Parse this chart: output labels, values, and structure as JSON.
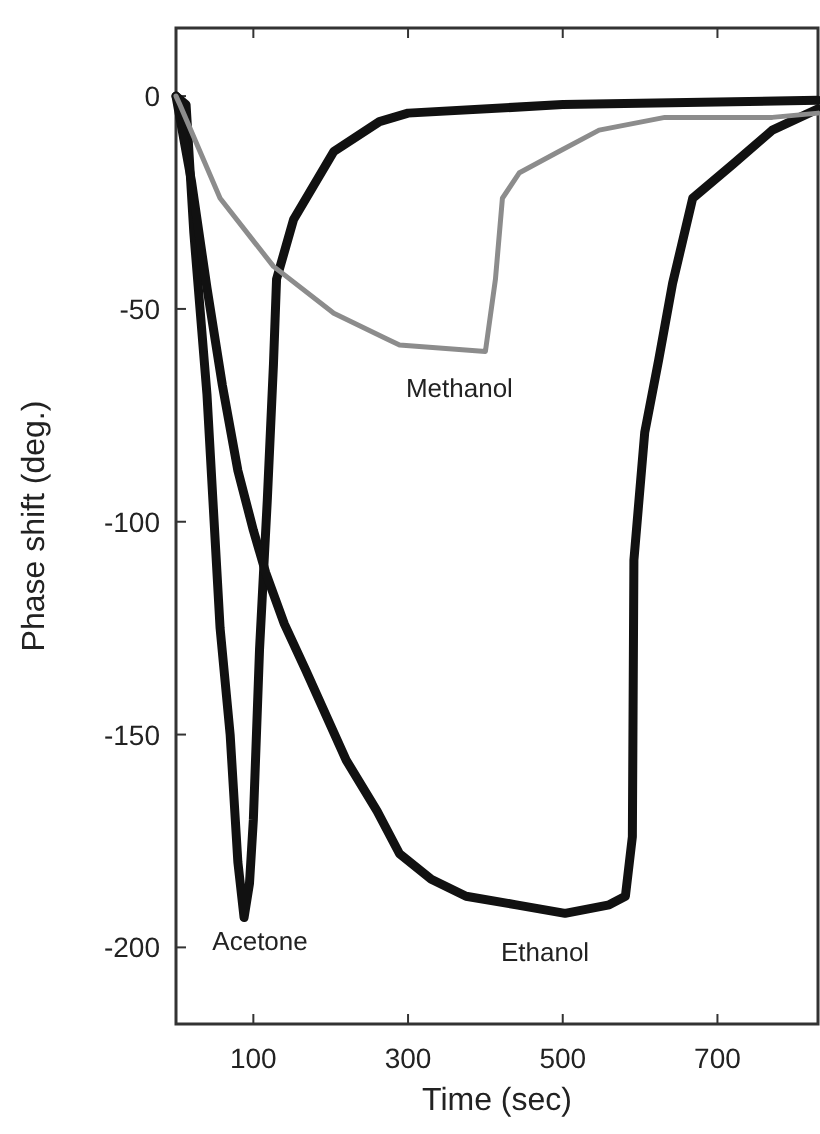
{
  "chart_data": {
    "type": "line",
    "xlabel": "Time (sec)",
    "ylabel": "Phase shift (deg.)",
    "xlim": [
      0,
      830
    ],
    "ylim": [
      -218,
      16
    ],
    "xticks": [
      100,
      300,
      500,
      700
    ],
    "yticks": [
      0,
      -50,
      -100,
      -150,
      -200
    ],
    "grid": false,
    "marker": "none",
    "line_style": "solid",
    "series": [
      {
        "name": "Acetone",
        "color": "#111111",
        "x": [
          0,
          13,
          23,
          40,
          57,
          70,
          80,
          88,
          95,
          100,
          108,
          118,
          126,
          130,
          152,
          204,
          263,
          300,
          500,
          830
        ],
        "values": [
          0,
          -2,
          -32,
          -70,
          -125,
          -150,
          -180,
          -193,
          -185,
          -170,
          -130,
          -95,
          -63,
          -43,
          -29,
          -13,
          -6,
          -4,
          -2,
          -1
        ]
      },
      {
        "name": "Ethanol",
        "color": "#111111",
        "x": [
          0,
          20,
          40,
          60,
          80,
          100,
          116,
          140,
          168,
          220,
          260,
          289,
          330,
          375,
          440,
          503,
          560,
          581,
          590,
          592,
          606,
          624,
          642,
          668,
          720,
          771,
          830
        ],
        "values": [
          0,
          -20,
          -45,
          -68,
          -88,
          -102,
          -112,
          -124,
          -135,
          -156,
          -168,
          -178,
          -184,
          -188,
          -190,
          -192,
          -190,
          -188,
          -174,
          -109,
          -79,
          -62,
          -44,
          -24,
          -16,
          -8,
          -3
        ]
      },
      {
        "name": "Methanol",
        "color": "#8c8c8c",
        "x": [
          0,
          5,
          57,
          126,
          204,
          272,
          289,
          400,
          413,
          422,
          444,
          495,
          547,
          632,
          771,
          830
        ],
        "values": [
          0,
          -2,
          -24,
          -40,
          -51,
          -57,
          -58.5,
          -60,
          -43,
          -24,
          -18,
          -13,
          -8,
          -5,
          -5,
          -4
        ]
      }
    ]
  }
}
